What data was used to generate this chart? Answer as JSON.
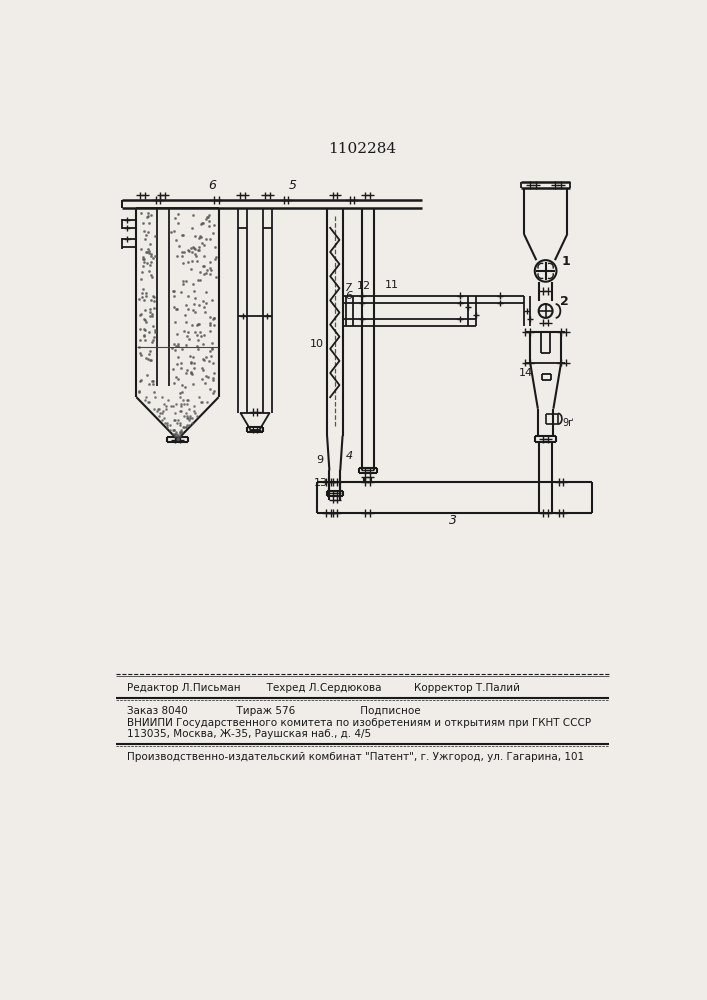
{
  "title": "1102284",
  "bg_color": "#f0ede8",
  "line_color": "#1a1a1a",
  "footer_line1": "Редактор Л.Письман        Техред Л.Сердюкова          Корректор Т.Палий",
  "footer_line2": "Заказ 8040               Тираж 576                    Подписное",
  "footer_line3": "ВНИИПИ Государственного комитета по изобретениям и открытиям при ГКНТ СССР",
  "footer_line4": "113035, Москва, Ж-35, Раушская наб., д. 4/5",
  "footer_line5": "Производственно-издательский комбинат \"Патент\", г. Ужгород, ул. Гагарина, 101"
}
